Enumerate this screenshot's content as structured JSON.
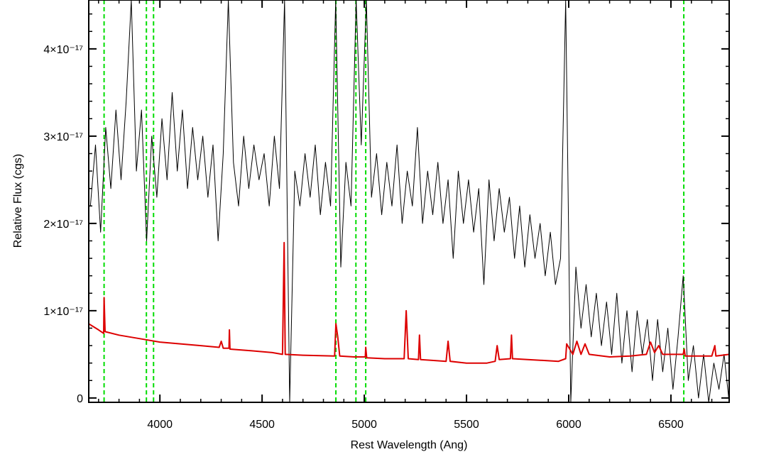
{
  "chart_data": {
    "type": "line",
    "xlabel": "Rest Wavelength (Ang)",
    "ylabel": "Relative Flux (cgs)",
    "xlim": [
      3652,
      6785
    ],
    "ylim": [
      -5e-19,
      4.56e-17
    ],
    "xticks": [
      4000,
      4500,
      5000,
      5500,
      6000,
      6500
    ],
    "yticks": [
      0,
      {
        "value": 1e-17,
        "label": "1×10⁻¹⁷"
      },
      {
        "value": 2e-17,
        "label": "2×10⁻¹⁷"
      },
      {
        "value": 3e-17,
        "label": "3×10⁻¹⁷"
      },
      {
        "value": 4e-17,
        "label": "4×10⁻¹⁷"
      }
    ],
    "xminorticks": [
      3700,
      3800,
      3900,
      4000,
      4100,
      4200,
      4300,
      4400,
      4500,
      4600,
      4700,
      4800,
      4900,
      5000,
      5100,
      5200,
      5300,
      5400,
      5500,
      5600,
      5700,
      5800,
      5900,
      6000,
      6100,
      6200,
      6300,
      6400,
      6500,
      6600,
      6700
    ],
    "yminorticks": [
      0,
      2e-18,
      4e-18,
      6e-18,
      8e-18,
      1e-17,
      1.2e-17,
      1.4e-17,
      1.6e-17,
      1.8e-17,
      2e-17,
      2.2e-17,
      2.4e-17,
      2.6e-17,
      2.8e-17,
      3e-17,
      3.2e-17,
      3.4e-17,
      3.6e-17,
      3.8e-17,
      4e-17,
      4.2e-17,
      4.4e-17
    ],
    "vlines": [
      3727,
      3934,
      3969,
      4861,
      4959,
      5007,
      6563
    ],
    "vline_color": "#00dd00",
    "series": [
      {
        "color": "#000000",
        "x": [
          3660,
          3685,
          3710,
          3735,
          3760,
          3785,
          3810,
          3835,
          3860,
          3885,
          3910,
          3935,
          3960,
          3985,
          4010,
          4035,
          4060,
          4085,
          4110,
          4135,
          4160,
          4185,
          4210,
          4235,
          4260,
          4285,
          4310,
          4335,
          4360,
          4385,
          4410,
          4435,
          4460,
          4485,
          4510,
          4535,
          4560,
          4585,
          4610,
          4635,
          4660,
          4685,
          4710,
          4735,
          4760,
          4785,
          4810,
          4835,
          4860,
          4885,
          4910,
          4935,
          4960,
          4985,
          5010,
          5035,
          5060,
          5085,
          5110,
          5135,
          5160,
          5185,
          5210,
          5235,
          5260,
          5285,
          5310,
          5335,
          5360,
          5385,
          5410,
          5435,
          5460,
          5485,
          5510,
          5535,
          5560,
          5585,
          5610,
          5635,
          5660,
          5685,
          5710,
          5735,
          5760,
          5785,
          5810,
          5835,
          5860,
          5885,
          5910,
          5935,
          5960,
          5985,
          6010,
          6035,
          6060,
          6085,
          6110,
          6135,
          6160,
          6185,
          6210,
          6235,
          6260,
          6285,
          6310,
          6335,
          6360,
          6385,
          6410,
          6435,
          6460,
          6485,
          6510,
          6535,
          6560,
          6585,
          6610,
          6635,
          6660,
          6685,
          6710,
          6735,
          6760,
          6785
        ],
        "values": [
          2.2e-17,
          2.9e-17,
          1.9e-17,
          3.1e-17,
          2.4e-17,
          3.3e-17,
          2.5e-17,
          3.4e-17,
          4.56e-17,
          2.6e-17,
          3.3e-17,
          1.8e-17,
          3e-17,
          2.3e-17,
          3.2e-17,
          2.5e-17,
          3.5e-17,
          2.6e-17,
          3.3e-17,
          2.4e-17,
          3.1e-17,
          2.5e-17,
          3e-17,
          2.3e-17,
          2.9e-17,
          1.8e-17,
          2.8e-17,
          4.56e-17,
          2.7e-17,
          2.2e-17,
          3e-17,
          2.4e-17,
          2.9e-17,
          2.5e-17,
          2.8e-17,
          2.2e-17,
          3e-17,
          2.4e-17,
          4.56e-17,
          -5e-19,
          2.6e-17,
          2.2e-17,
          2.8e-17,
          2.3e-17,
          2.9e-17,
          2.1e-17,
          2.7e-17,
          2.2e-17,
          4.56e-17,
          1.5e-17,
          2.7e-17,
          2.2e-17,
          4.56e-17,
          2.9e-17,
          4.56e-17,
          2.3e-17,
          2.8e-17,
          2.1e-17,
          2.7e-17,
          2.2e-17,
          2.9e-17,
          2e-17,
          2.6e-17,
          2.2e-17,
          3.1e-17,
          2e-17,
          2.6e-17,
          2.1e-17,
          2.7e-17,
          2e-17,
          2.5e-17,
          1.6e-17,
          2.6e-17,
          2e-17,
          2.5e-17,
          1.9e-17,
          2.4e-17,
          1.3e-17,
          2.5e-17,
          1.8e-17,
          2.4e-17,
          1.9e-17,
          2.3e-17,
          1.6e-17,
          2.2e-17,
          1.5e-17,
          2.1e-17,
          1.6e-17,
          2e-17,
          1.4e-17,
          1.9e-17,
          1.3e-17,
          1.6e-17,
          4.56e-17,
          -5e-19,
          1.5e-17,
          8e-18,
          1.3e-17,
          7e-18,
          1.2e-17,
          6e-18,
          1.1e-17,
          5e-18,
          1.2e-17,
          4e-18,
          1e-17,
          3e-18,
          1e-17,
          5e-18,
          9e-18,
          2e-18,
          9e-18,
          3e-18,
          8e-18,
          1e-18,
          7e-18,
          1.4e-17,
          2e-18,
          6e-18,
          0,
          5e-18,
          -5e-19,
          4e-18,
          1e-18,
          5e-18,
          -5e-19
        ]
      },
      {
        "color": "#dd0000",
        "x": [
          3652,
          3700,
          3725,
          3727,
          3732,
          3800,
          3900,
          4000,
          4100,
          4200,
          4290,
          4300,
          4310,
          4338,
          4340,
          4343,
          4450,
          4550,
          4600,
          4608,
          4613,
          4700,
          4855,
          4861,
          4870,
          4880,
          4950,
          5005,
          5007,
          5012,
          5100,
          5195,
          5205,
          5215,
          5265,
          5270,
          5275,
          5400,
          5410,
          5420,
          5500,
          5600,
          5640,
          5650,
          5660,
          5715,
          5720,
          5725,
          5800,
          5950,
          5985,
          5990,
          6020,
          6040,
          6060,
          6080,
          6100,
          6200,
          6300,
          6380,
          6400,
          6420,
          6440,
          6460,
          6560,
          6565,
          6570,
          6700,
          6715,
          6720,
          6785
        ],
        "values": [
          8.5e-18,
          7.8e-18,
          7.4e-18,
          1.15e-17,
          7.6e-18,
          7.2e-18,
          6.8e-18,
          6.4e-18,
          6.2e-18,
          6e-18,
          5.8e-18,
          6.5e-18,
          5.7e-18,
          5.7e-18,
          7.8e-18,
          5.6e-18,
          5.4e-18,
          5.2e-18,
          5e-18,
          1.78e-17,
          5e-18,
          4.9e-18,
          4.8e-18,
          8.5e-18,
          7e-18,
          4.8e-18,
          4.7e-18,
          4.7e-18,
          5.8e-18,
          4.6e-18,
          4.5e-18,
          4.5e-18,
          1e-17,
          4.5e-18,
          4.4e-18,
          7.2e-18,
          4.4e-18,
          4.2e-18,
          6.5e-18,
          4.2e-18,
          4e-18,
          4e-18,
          4.2e-18,
          6e-18,
          4.4e-18,
          4.5e-18,
          7.2e-18,
          4.5e-18,
          4.4e-18,
          4.2e-18,
          4.5e-18,
          6.2e-18,
          5e-18,
          6.5e-18,
          5e-18,
          6.2e-18,
          5e-18,
          4.7e-18,
          4.8e-18,
          5e-18,
          6.4e-18,
          5.2e-18,
          6e-18,
          5e-18,
          5e-18,
          5.6e-18,
          4.8e-18,
          4.8e-18,
          6e-18,
          4.8e-18,
          5e-18
        ]
      }
    ]
  }
}
